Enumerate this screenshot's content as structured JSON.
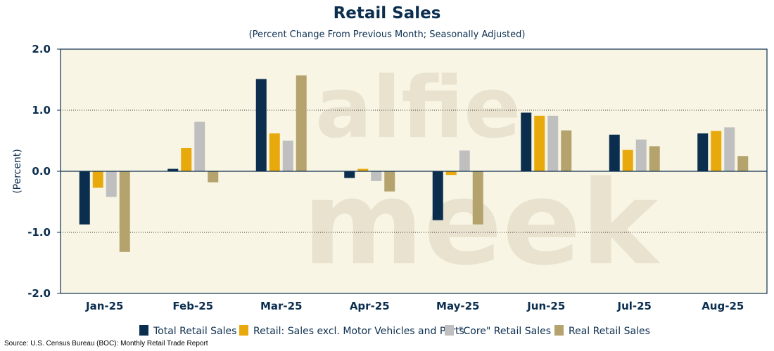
{
  "chart_data": {
    "type": "bar",
    "title": "Retail Sales",
    "subtitle": "(Percent Change From Previous Month; Seasonally Adjusted)",
    "xlabel": "",
    "ylabel": "(Percent)",
    "ylim": [
      -2.0,
      2.0
    ],
    "yticks": [
      "2.0",
      "1.0",
      "0.0",
      "-1.0",
      "-2.0"
    ],
    "ytick_values": [
      2.0,
      1.0,
      0.0,
      -1.0,
      -2.0
    ],
    "grid": "dotted horizontal",
    "categories": [
      "Jan-25",
      "Feb-25",
      "Mar-25",
      "Apr-25",
      "May-25",
      "Jun-25",
      "Jul-25",
      "Aug-25"
    ],
    "series": [
      {
        "name": "Total Retail Sales",
        "color": "#0b2e4f",
        "values": [
          -0.87,
          0.04,
          1.51,
          -0.11,
          -0.8,
          0.96,
          0.6,
          0.62
        ]
      },
      {
        "name": "Retail: Sales excl. Motor Vehicles and Parts",
        "color": "#e8a90c",
        "values": [
          -0.27,
          0.38,
          0.62,
          0.04,
          -0.06,
          0.91,
          0.35,
          0.66
        ]
      },
      {
        "name": "\"Core\" Retail Sales",
        "color": "#bfbfbf",
        "values": [
          -0.42,
          0.81,
          0.5,
          -0.16,
          0.34,
          0.91,
          0.52,
          0.72
        ]
      },
      {
        "name": "Real Retail Sales",
        "color": "#b5a36e",
        "values": [
          -1.32,
          -0.18,
          1.57,
          -0.33,
          -0.87,
          0.67,
          0.41,
          0.25
        ]
      }
    ],
    "legend_position": "bottom"
  },
  "watermark": {
    "line1": "alfie",
    "line2": "meek"
  },
  "source": "Source: U.S. Census Bureau (BOC): Monthly Retail Trade Report",
  "colors": {
    "plot_background": "#f8f5e4",
    "axis": "#0b2e4f"
  }
}
